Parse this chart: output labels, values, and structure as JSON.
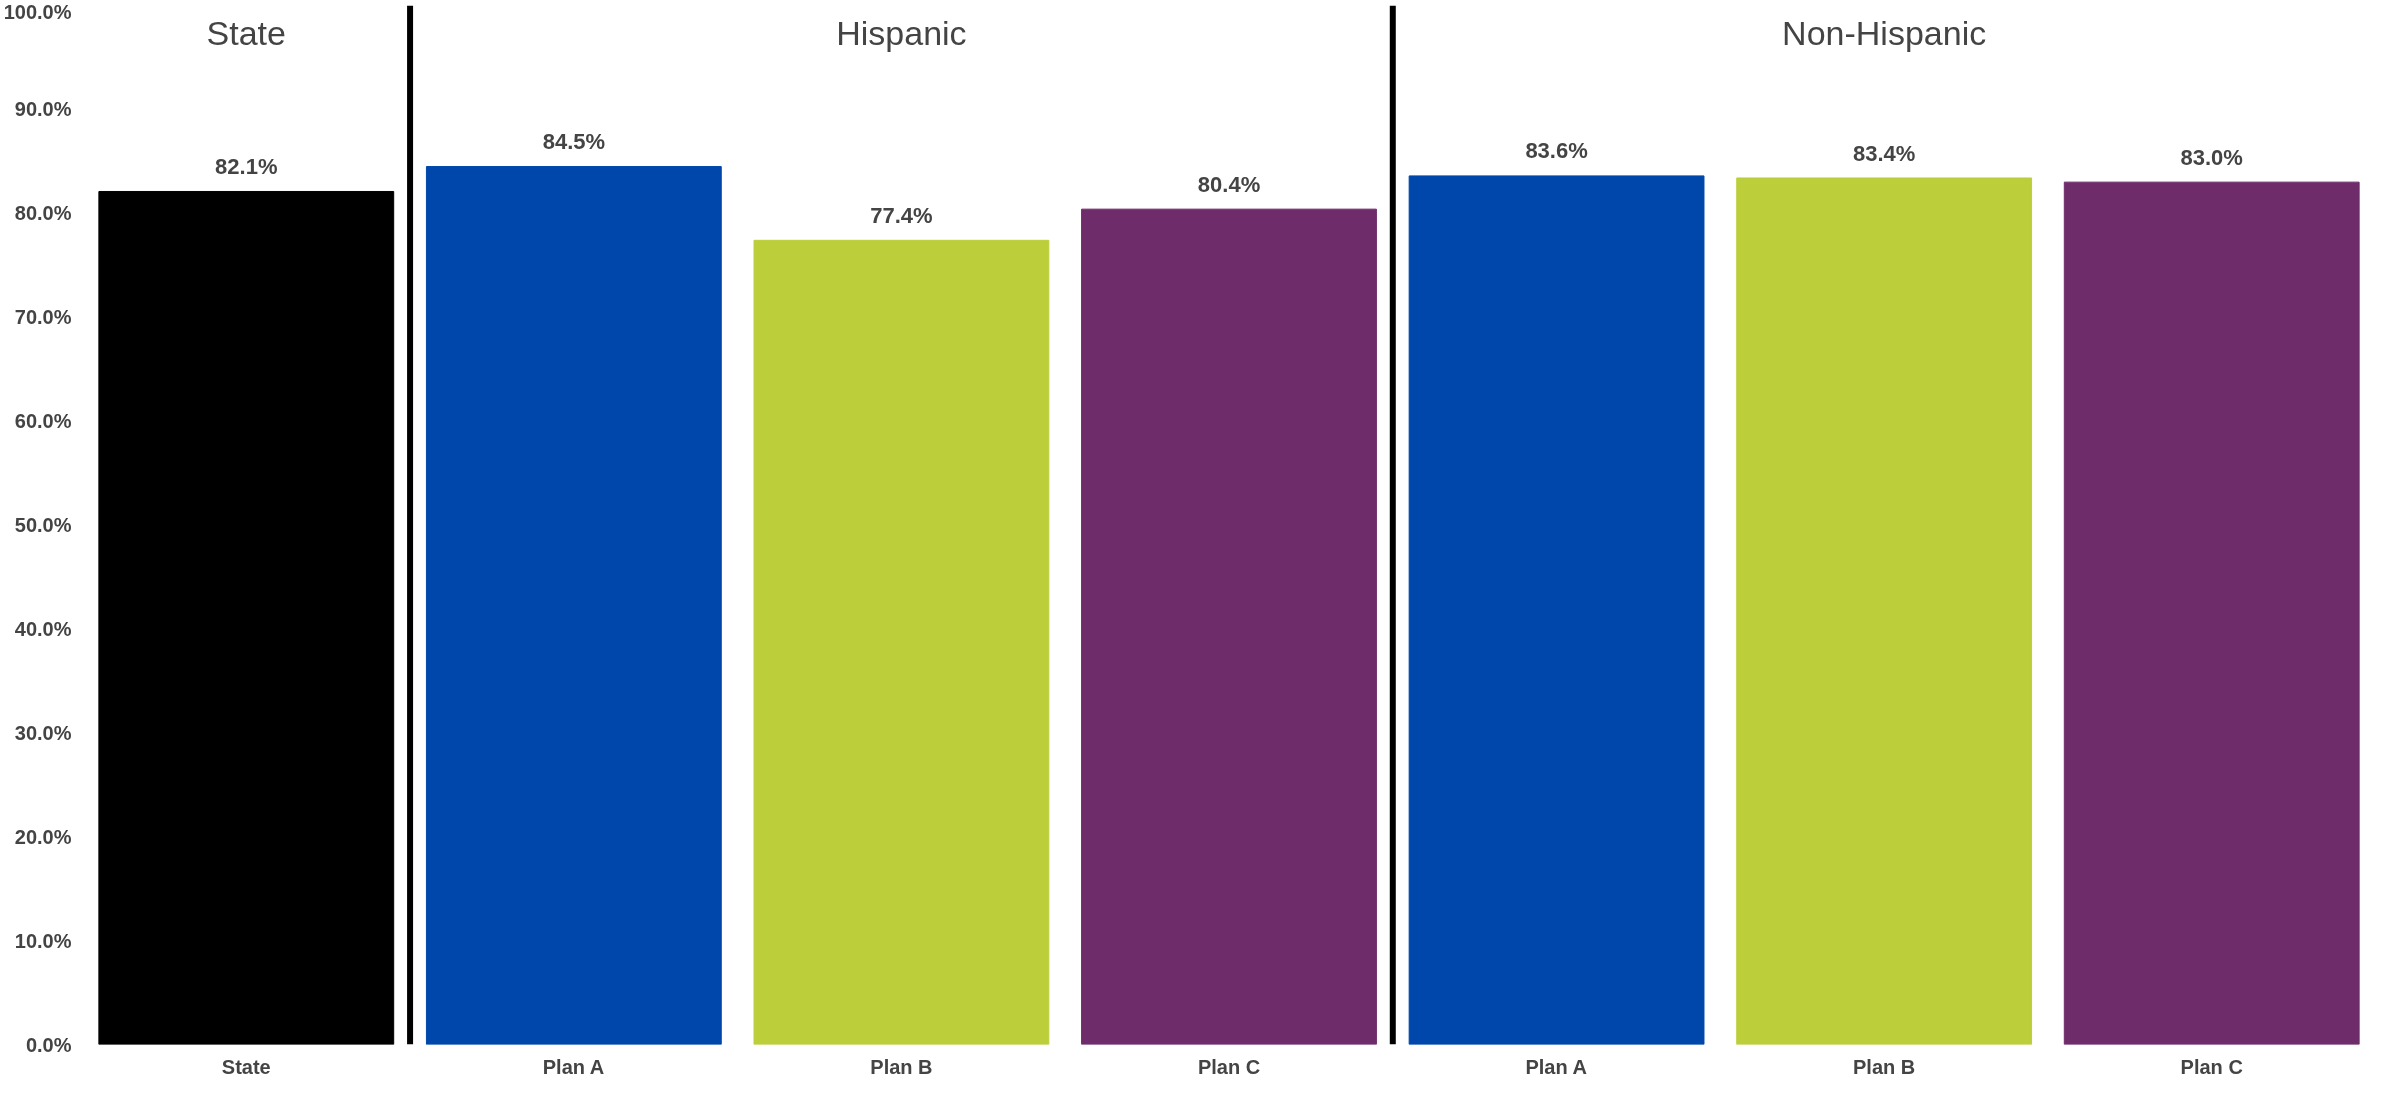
{
  "chart_data": {
    "type": "bar",
    "categories": [
      "State",
      "Plan A",
      "Plan B",
      "Plan C",
      "Plan A",
      "Plan B",
      "Plan C"
    ],
    "values": [
      82.1,
      84.5,
      77.4,
      80.4,
      83.6,
      83.4,
      83.0
    ],
    "colors": [
      "#000000",
      "#0047ab",
      "#bccf3a",
      "#6e2c6b",
      "#0047ab",
      "#bccf3a",
      "#6e2c6b"
    ],
    "data_labels": true,
    "value_labels": [
      "82.1%",
      "84.5%",
      "77.4%",
      "80.4%",
      "83.6%",
      "83.4%",
      "83.0%"
    ],
    "ylim": [
      0,
      100
    ],
    "yticks": [
      {
        "value": 0,
        "label": "0.0%"
      },
      {
        "value": 10,
        "label": "10.0%"
      },
      {
        "value": 20,
        "label": "20.0%"
      },
      {
        "value": 30,
        "label": "30.0%"
      },
      {
        "value": 40,
        "label": "40.0%"
      },
      {
        "value": 50,
        "label": "50.0%"
      },
      {
        "value": 60,
        "label": "60.0%"
      },
      {
        "value": 70,
        "label": "70.0%"
      },
      {
        "value": 80,
        "label": "80.0%"
      },
      {
        "value": 90,
        "label": "90.0%"
      },
      {
        "value": 100,
        "label": "100.0%"
      }
    ],
    "annotations": [
      "State",
      "Hispanic",
      "Non-Hispanic"
    ]
  }
}
